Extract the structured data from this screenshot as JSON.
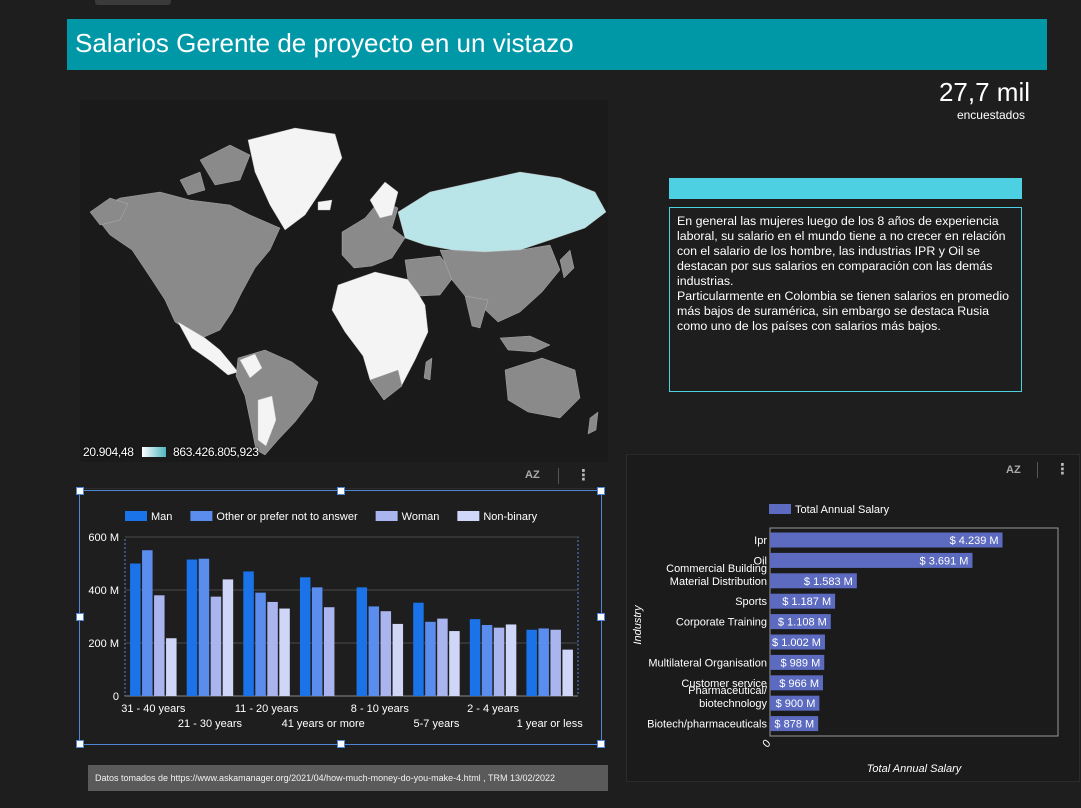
{
  "page_title": "Salarios Gerente de proyecto en un vistazo",
  "kpi": {
    "value": "27,7 mil",
    "label": "encuestados"
  },
  "map": {
    "legend_min": "20.904,48",
    "legend_max": "863.426.805,923",
    "colors": {
      "low": "#ffffff",
      "high": "#4db6bf",
      "no_data": "#8a8a8a"
    }
  },
  "insight": {
    "paragraphs": [
      "En general las mujeres luego de los 8 años de experiencia laboral, su salario en el mundo tiene a no crecer en relación con el salario de los hombre, las industrias IPR y Oil se destacan por sus salarios en comparación con las demás industrias.",
      "Particularmente en Colombia se tienen salarios en promedio más bajos de suramérica, sin embargo se destaca Rusia como uno de los países con salarios más bajos."
    ]
  },
  "toolbar": {
    "sort_icon": "sort-az-icon",
    "more_icon": "more-vert-icon",
    "sort_label": "AZ",
    "more_label": "⋮"
  },
  "chart_data": [
    {
      "type": "bar",
      "categories": [
        "31 - 40 years",
        "21 - 30 years",
        "11 - 20 years",
        "41 years or more",
        "8 - 10 years",
        "5-7 years",
        "2 - 4 years",
        "1 year or less"
      ],
      "series": [
        {
          "name": "Man",
          "color": "#1a73e8",
          "values": [
            500,
            515,
            470,
            448,
            410,
            352,
            290,
            250
          ]
        },
        {
          "name": "Other or prefer not to answer",
          "color": "#5b8def",
          "values": [
            550,
            518,
            390,
            410,
            338,
            280,
            268,
            255
          ]
        },
        {
          "name": "Woman",
          "color": "#aab4ee",
          "values": [
            380,
            375,
            355,
            335,
            320,
            292,
            258,
            250
          ]
        },
        {
          "name": "Non-binary",
          "color": "#d0d6f7",
          "values": [
            218,
            440,
            330,
            0,
            272,
            245,
            270,
            175
          ]
        }
      ],
      "ylim": [
        0,
        600
      ],
      "yticks": [
        {
          "value": 0,
          "label": "0"
        },
        {
          "value": 200,
          "label": "200 M"
        },
        {
          "value": 400,
          "label": "400 M"
        },
        {
          "value": 600,
          "label": "600 M"
        }
      ],
      "legend_position": "top",
      "grid": true
    },
    {
      "type": "bar",
      "orientation": "horizontal",
      "legend": "Total Annual Salary",
      "legend_position": "top",
      "xlabel": "Total Annual Salary",
      "ylabel": "Industry",
      "x_tick_label": "0",
      "color": "#5c6bc0",
      "categories": [
        "Ipr",
        "Oil",
        "Commercial Building Material Distribution",
        "Sports",
        "Corporate Training",
        "",
        "Multilateral Organisation",
        "Customer service",
        "Pharmaceutical/ biotechnology",
        "Biotech/pharmaceuticals"
      ],
      "values": [
        4.239,
        3.691,
        1.583,
        1.187,
        1.108,
        1.002,
        0.989,
        0.966,
        0.9,
        0.878
      ],
      "data_labels": [
        "$ 4.239 M",
        "$ 3.691 M",
        "$ 1.583 M",
        "$ 1.187 M",
        "$ 1.108 M",
        "$ 1.002 M",
        "$ 989 M",
        "$ 966 M",
        "$ 900 M",
        "$ 878 M"
      ]
    }
  ],
  "footnote": "Datos tomados de https://www.askamanager.org/2021/04/how-much-money-do-you-make-4.html  , TRM 13/02/2022"
}
